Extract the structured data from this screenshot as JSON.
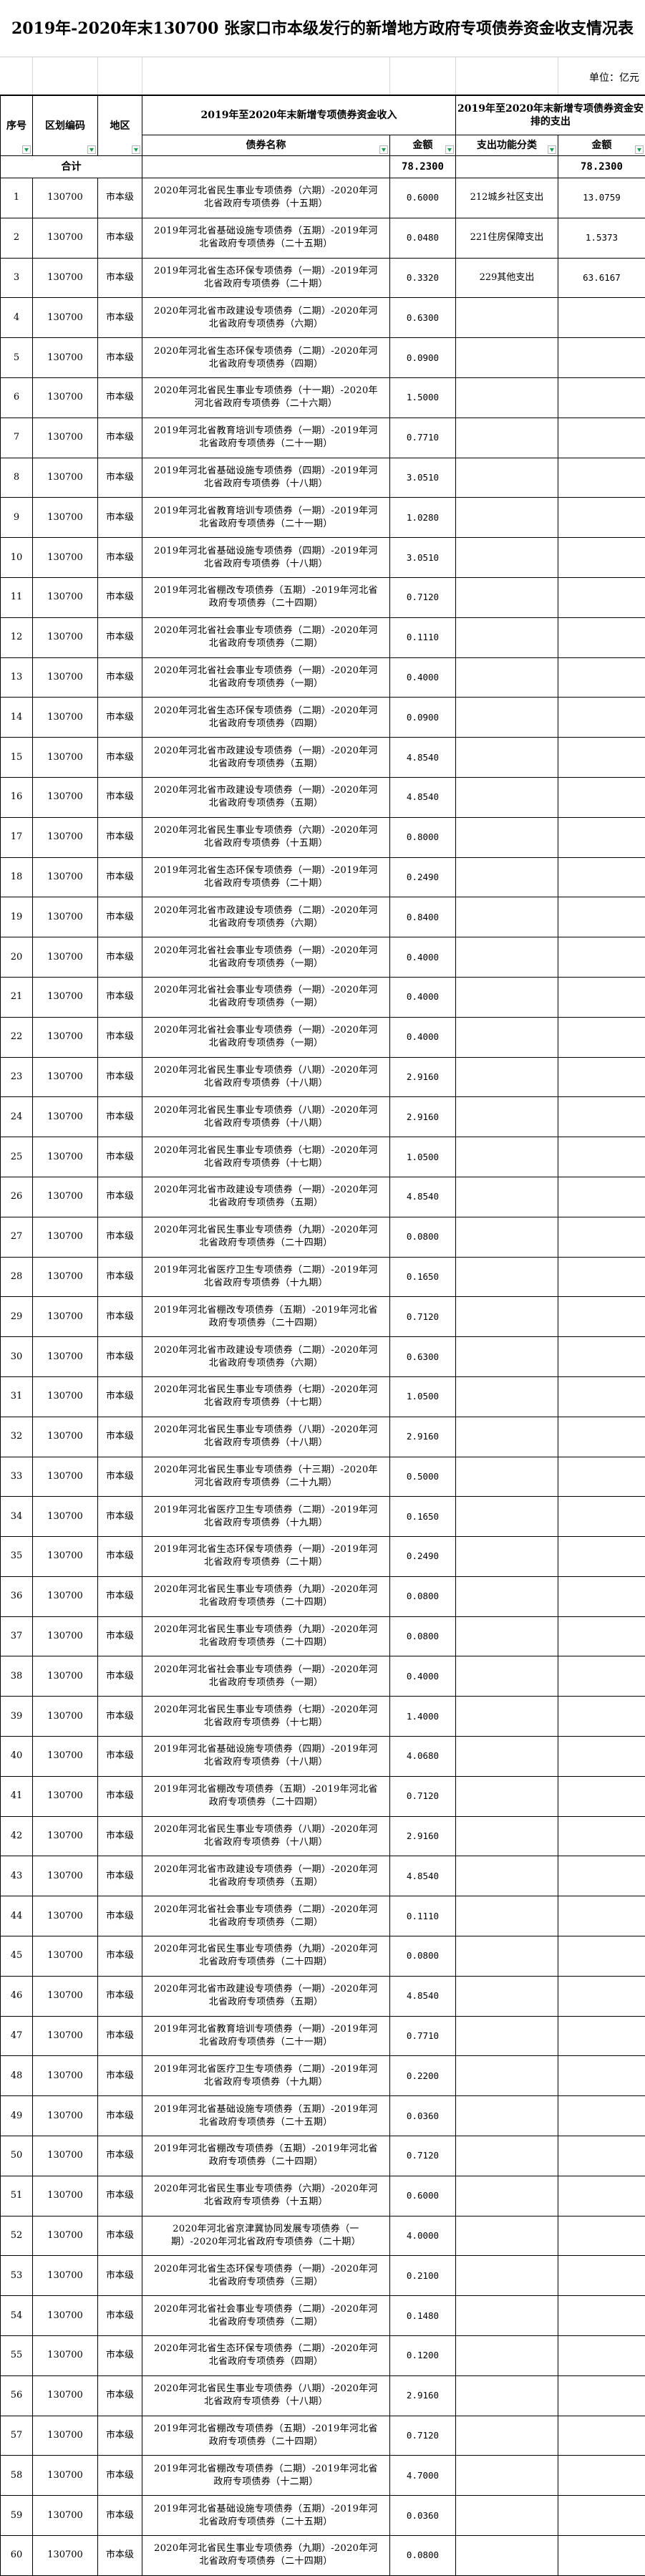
{
  "title": "2019年-2020年末130700 张家口市本级发行的新增地方政府专项债券资金收支情况表",
  "unit": "单位：亿元",
  "headers": {
    "seq": "序号",
    "code": "区划编码",
    "region": "地区",
    "income_group": "2019年至2020年末新增专项债券资金收入",
    "expense_group": "2019年至2020年末新增专项债券资金安排的支出",
    "bond_name": "债券名称",
    "amount": "金额",
    "function_class": "支出功能分类",
    "expense_amount": "金额"
  },
  "filter_icon_color": "#1a9e52",
  "total": {
    "label": "合计",
    "income": "78.2300",
    "expense": "78.2300"
  },
  "rows": [
    [
      "1",
      "130700",
      "市本级",
      "2020年河北省民生事业专项债券（六期）-2020年河北省政府专项债券（十五期）",
      "0.6000",
      "212城乡社区支出",
      "13.0759"
    ],
    [
      "2",
      "130700",
      "市本级",
      "2019年河北省基础设施专项债券（五期）-2019年河北省政府专项债券（二十五期）",
      "0.0480",
      "221住房保障支出",
      "1.5373"
    ],
    [
      "3",
      "130700",
      "市本级",
      "2019年河北省生态环保专项债券（一期）-2019年河北省政府专项债券（二十期）",
      "0.3320",
      "229其他支出",
      "63.6167"
    ],
    [
      "4",
      "130700",
      "市本级",
      "2020年河北省市政建设专项债券（二期）-2020年河北省政府专项债券（六期）",
      "0.6300",
      "",
      ""
    ],
    [
      "5",
      "130700",
      "市本级",
      "2020年河北省生态环保专项债券（二期）-2020年河北省政府专项债券（四期）",
      "0.0900",
      "",
      ""
    ],
    [
      "6",
      "130700",
      "市本级",
      "2020年河北省民生事业专项债券（十一期）-2020年河北省政府专项债券（二十六期）",
      "1.5000",
      "",
      ""
    ],
    [
      "7",
      "130700",
      "市本级",
      "2019年河北省教育培训专项债券（一期）-2019年河北省政府专项债券（二十一期）",
      "0.7710",
      "",
      ""
    ],
    [
      "8",
      "130700",
      "市本级",
      "2019年河北省基础设施专项债券（四期）-2019年河北省政府专项债券（十八期）",
      "3.0510",
      "",
      ""
    ],
    [
      "9",
      "130700",
      "市本级",
      "2019年河北省教育培训专项债券（一期）-2019年河北省政府专项债券（二十一期）",
      "1.0280",
      "",
      ""
    ],
    [
      "10",
      "130700",
      "市本级",
      "2019年河北省基础设施专项债券（四期）-2019年河北省政府专项债券（十八期）",
      "3.0510",
      "",
      ""
    ],
    [
      "11",
      "130700",
      "市本级",
      "2019年河北省棚改专项债券（五期）-2019年河北省政府专项债券（二十四期）",
      "0.7120",
      "",
      ""
    ],
    [
      "12",
      "130700",
      "市本级",
      "2020年河北省社会事业专项债券（二期）-2020年河北省政府专项债券（二期）",
      "0.1110",
      "",
      ""
    ],
    [
      "13",
      "130700",
      "市本级",
      "2020年河北省社会事业专项债券（一期）-2020年河北省政府专项债券（一期）",
      "0.4000",
      "",
      ""
    ],
    [
      "14",
      "130700",
      "市本级",
      "2020年河北省生态环保专项债券（二期）-2020年河北省政府专项债券（四期）",
      "0.0900",
      "",
      ""
    ],
    [
      "15",
      "130700",
      "市本级",
      "2020年河北省市政建设专项债券（一期）-2020年河北省政府专项债券（五期）",
      "4.8540",
      "",
      ""
    ],
    [
      "16",
      "130700",
      "市本级",
      "2020年河北省市政建设专项债券（一期）-2020年河北省政府专项债券（五期）",
      "4.8540",
      "",
      ""
    ],
    [
      "17",
      "130700",
      "市本级",
      "2020年河北省民生事业专项债券（六期）-2020年河北省政府专项债券（十五期）",
      "0.8000",
      "",
      ""
    ],
    [
      "18",
      "130700",
      "市本级",
      "2019年河北省生态环保专项债券（一期）-2019年河北省政府专项债券（二十期）",
      "0.2490",
      "",
      ""
    ],
    [
      "19",
      "130700",
      "市本级",
      "2020年河北省市政建设专项债券（二期）-2020年河北省政府专项债券（六期）",
      "0.8400",
      "",
      ""
    ],
    [
      "20",
      "130700",
      "市本级",
      "2020年河北省社会事业专项债券（一期）-2020年河北省政府专项债券（一期）",
      "0.4000",
      "",
      ""
    ],
    [
      "21",
      "130700",
      "市本级",
      "2020年河北省社会事业专项债券（一期）-2020年河北省政府专项债券（一期）",
      "0.4000",
      "",
      ""
    ],
    [
      "22",
      "130700",
      "市本级",
      "2020年河北省社会事业专项债券（一期）-2020年河北省政府专项债券（一期）",
      "0.4000",
      "",
      ""
    ],
    [
      "23",
      "130700",
      "市本级",
      "2020年河北省民生事业专项债券（八期）-2020年河北省政府专项债券（十八期）",
      "2.9160",
      "",
      ""
    ],
    [
      "24",
      "130700",
      "市本级",
      "2020年河北省民生事业专项债券（八期）-2020年河北省政府专项债券（十八期）",
      "2.9160",
      "",
      ""
    ],
    [
      "25",
      "130700",
      "市本级",
      "2020年河北省民生事业专项债券（七期）-2020年河北省政府专项债券（十七期）",
      "1.0500",
      "",
      ""
    ],
    [
      "26",
      "130700",
      "市本级",
      "2020年河北省市政建设专项债券（一期）-2020年河北省政府专项债券（五期）",
      "4.8540",
      "",
      ""
    ],
    [
      "27",
      "130700",
      "市本级",
      "2020年河北省民生事业专项债券（九期）-2020年河北省政府专项债券（二十四期）",
      "0.0800",
      "",
      ""
    ],
    [
      "28",
      "130700",
      "市本级",
      "2019年河北省医疗卫生专项债券（二期）-2019年河北省政府专项债券（十九期）",
      "0.1650",
      "",
      ""
    ],
    [
      "29",
      "130700",
      "市本级",
      "2019年河北省棚改专项债券（五期）-2019年河北省政府专项债券（二十四期）",
      "0.7120",
      "",
      ""
    ],
    [
      "30",
      "130700",
      "市本级",
      "2020年河北省市政建设专项债券（二期）-2020年河北省政府专项债券（六期）",
      "0.6300",
      "",
      ""
    ],
    [
      "31",
      "130700",
      "市本级",
      "2020年河北省民生事业专项债券（七期）-2020年河北省政府专项债券（十七期）",
      "1.0500",
      "",
      ""
    ],
    [
      "32",
      "130700",
      "市本级",
      "2020年河北省民生事业专项债券（八期）-2020年河北省政府专项债券（十八期）",
      "2.9160",
      "",
      ""
    ],
    [
      "33",
      "130700",
      "市本级",
      "2020年河北省民生事业专项债券（十三期）-2020年河北省政府专项债券（二十九期）",
      "0.5000",
      "",
      ""
    ],
    [
      "34",
      "130700",
      "市本级",
      "2019年河北省医疗卫生专项债券（二期）-2019年河北省政府专项债券（十九期）",
      "0.1650",
      "",
      ""
    ],
    [
      "35",
      "130700",
      "市本级",
      "2019年河北省生态环保专项债券（一期）-2019年河北省政府专项债券（二十期）",
      "0.2490",
      "",
      ""
    ],
    [
      "36",
      "130700",
      "市本级",
      "2020年河北省民生事业专项债券（九期）-2020年河北省政府专项债券（二十四期）",
      "0.0800",
      "",
      ""
    ],
    [
      "37",
      "130700",
      "市本级",
      "2020年河北省民生事业专项债券（九期）-2020年河北省政府专项债券（二十四期）",
      "0.0800",
      "",
      ""
    ],
    [
      "38",
      "130700",
      "市本级",
      "2020年河北省社会事业专项债券（一期）-2020年河北省政府专项债券（一期）",
      "0.4000",
      "",
      ""
    ],
    [
      "39",
      "130700",
      "市本级",
      "2020年河北省民生事业专项债券（七期）-2020年河北省政府专项债券（十七期）",
      "1.4000",
      "",
      ""
    ],
    [
      "40",
      "130700",
      "市本级",
      "2019年河北省基础设施专项债券（四期）-2019年河北省政府专项债券（十八期）",
      "4.0680",
      "",
      ""
    ],
    [
      "41",
      "130700",
      "市本级",
      "2019年河北省棚改专项债券（五期）-2019年河北省政府专项债券（二十四期）",
      "0.7120",
      "",
      ""
    ],
    [
      "42",
      "130700",
      "市本级",
      "2020年河北省民生事业专项债券（八期）-2020年河北省政府专项债券（十八期）",
      "2.9160",
      "",
      ""
    ],
    [
      "43",
      "130700",
      "市本级",
      "2020年河北省市政建设专项债券（一期）-2020年河北省政府专项债券（五期）",
      "4.8540",
      "",
      ""
    ],
    [
      "44",
      "130700",
      "市本级",
      "2020年河北省社会事业专项债券（二期）-2020年河北省政府专项债券（二期）",
      "0.1110",
      "",
      ""
    ],
    [
      "45",
      "130700",
      "市本级",
      "2020年河北省民生事业专项债券（九期）-2020年河北省政府专项债券（二十四期）",
      "0.0800",
      "",
      ""
    ],
    [
      "46",
      "130700",
      "市本级",
      "2020年河北省市政建设专项债券（一期）-2020年河北省政府专项债券（五期）",
      "4.8540",
      "",
      ""
    ],
    [
      "47",
      "130700",
      "市本级",
      "2019年河北省教育培训专项债券（一期）-2019年河北省政府专项债券（二十一期）",
      "0.7710",
      "",
      ""
    ],
    [
      "48",
      "130700",
      "市本级",
      "2019年河北省医疗卫生专项债券（二期）-2019年河北省政府专项债券（十九期）",
      "0.2200",
      "",
      ""
    ],
    [
      "49",
      "130700",
      "市本级",
      "2019年河北省基础设施专项债券（五期）-2019年河北省政府专项债券（二十五期）",
      "0.0360",
      "",
      ""
    ],
    [
      "50",
      "130700",
      "市本级",
      "2019年河北省棚改专项债券（五期）-2019年河北省政府专项债券（二十四期）",
      "0.7120",
      "",
      ""
    ],
    [
      "51",
      "130700",
      "市本级",
      "2020年河北省民生事业专项债券（六期）-2020年河北省政府专项债券（十五期）",
      "0.6000",
      "",
      ""
    ],
    [
      "52",
      "130700",
      "市本级",
      "2020年河北省京津冀协同发展专项债券（一期）-2020年河北省政府专项债券（二十期）",
      "4.0000",
      "",
      ""
    ],
    [
      "53",
      "130700",
      "市本级",
      "2020年河北省生态环保专项债券（一期）-2020年河北省政府专项债券（三期）",
      "0.2100",
      "",
      ""
    ],
    [
      "54",
      "130700",
      "市本级",
      "2020年河北省社会事业专项债券（二期）-2020年河北省政府专项债券（二期）",
      "0.1480",
      "",
      ""
    ],
    [
      "55",
      "130700",
      "市本级",
      "2020年河北省生态环保专项债券（二期）-2020年河北省政府专项债券（四期）",
      "0.1200",
      "",
      ""
    ],
    [
      "56",
      "130700",
      "市本级",
      "2020年河北省民生事业专项债券（八期）-2020年河北省政府专项债券（十八期）",
      "2.9160",
      "",
      ""
    ],
    [
      "57",
      "130700",
      "市本级",
      "2019年河北省棚改专项债券（五期）-2019年河北省政府专项债券（二十四期）",
      "0.7120",
      "",
      ""
    ],
    [
      "58",
      "130700",
      "市本级",
      "2019年河北省棚改专项债券（二期）-2019年河北省政府专项债券（十二期）",
      "4.7000",
      "",
      ""
    ],
    [
      "59",
      "130700",
      "市本级",
      "2019年河北省基础设施专项债券（五期）-2019年河北省政府专项债券（二十五期）",
      "0.0360",
      "",
      ""
    ],
    [
      "60",
      "130700",
      "市本级",
      "2020年河北省民生事业专项债券（九期）-2020年河北省政府专项债券（二十四期）",
      "0.0800",
      "",
      ""
    ]
  ]
}
